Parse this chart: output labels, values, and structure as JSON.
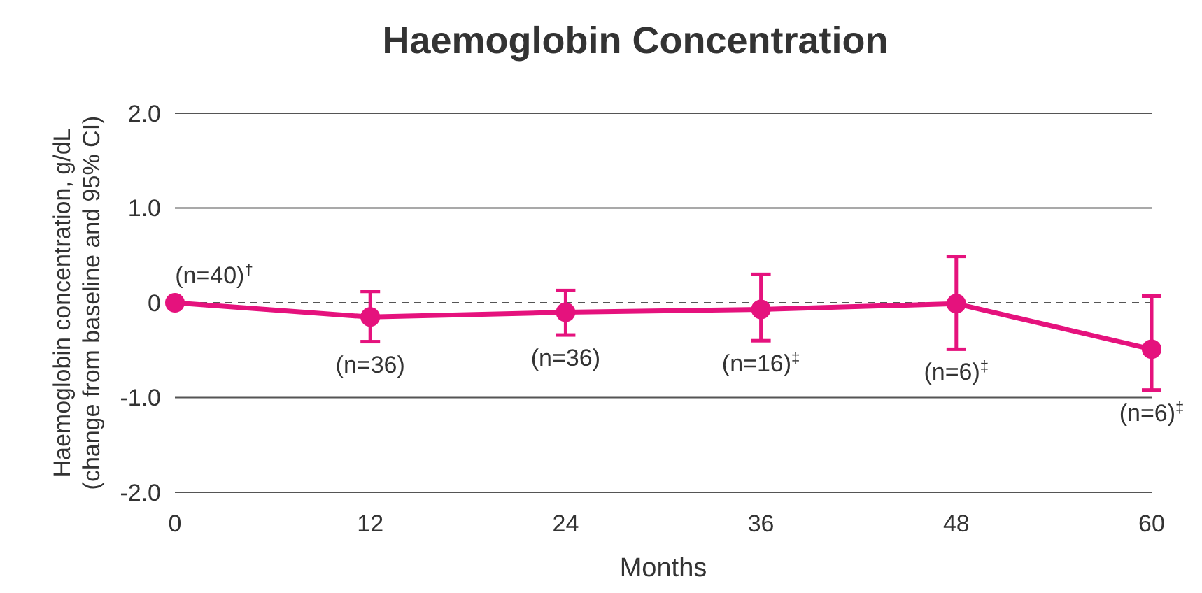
{
  "chart_data": {
    "type": "line",
    "title": "Haemoglobin Concentration",
    "xlabel": "Months",
    "ylabel": "Haemoglobin concentration, g/dL\n(change from baseline and 95% CI)",
    "x": [
      0,
      12,
      24,
      36,
      48,
      60
    ],
    "series": [
      {
        "color": "#e5127d",
        "values": [
          0,
          -0.15,
          -0.1,
          -0.07,
          -0.01,
          -0.49
        ],
        "errors": [
          null,
          [
            -0.41,
            0.12
          ],
          [
            -0.34,
            0.13
          ],
          [
            -0.4,
            0.3
          ],
          [
            -0.49,
            0.49
          ],
          [
            -0.92,
            0.07
          ]
        ]
      }
    ],
    "xlim": [
      0,
      60
    ],
    "xticks": [
      0,
      12,
      24,
      36,
      48,
      60
    ],
    "ylim": [
      -2,
      2
    ],
    "yticks": [
      {
        "value": -2,
        "label": "-2.0"
      },
      {
        "value": -1,
        "label": "-1.0"
      },
      0,
      {
        "value": 1,
        "label": "1.0"
      },
      {
        "value": 2,
        "label": "2.0"
      }
    ],
    "grid": "y",
    "marker": "circle",
    "line_style": "solid",
    "ref_lines": [
      {
        "axis": "y",
        "value": 0,
        "line_style": "dashed",
        "color": "#555555"
      }
    ],
    "annotations": [
      {
        "text": "(n=40)$^{†}$",
        "x": 0,
        "y": 0
      },
      {
        "text": "(n=36)",
        "x": 12,
        "y": -0.15
      },
      {
        "text": "(n=36)",
        "x": 24,
        "y": -0.1
      },
      {
        "text": "(n=16)$^{‡}$",
        "x": 36,
        "y": -0.07
      },
      {
        "text": "(n=6)$^{‡}$",
        "x": 48,
        "y": -0.01
      },
      {
        "text": "(n=6)$^{‡}$",
        "x": 60,
        "y": -0.49
      }
    ]
  }
}
